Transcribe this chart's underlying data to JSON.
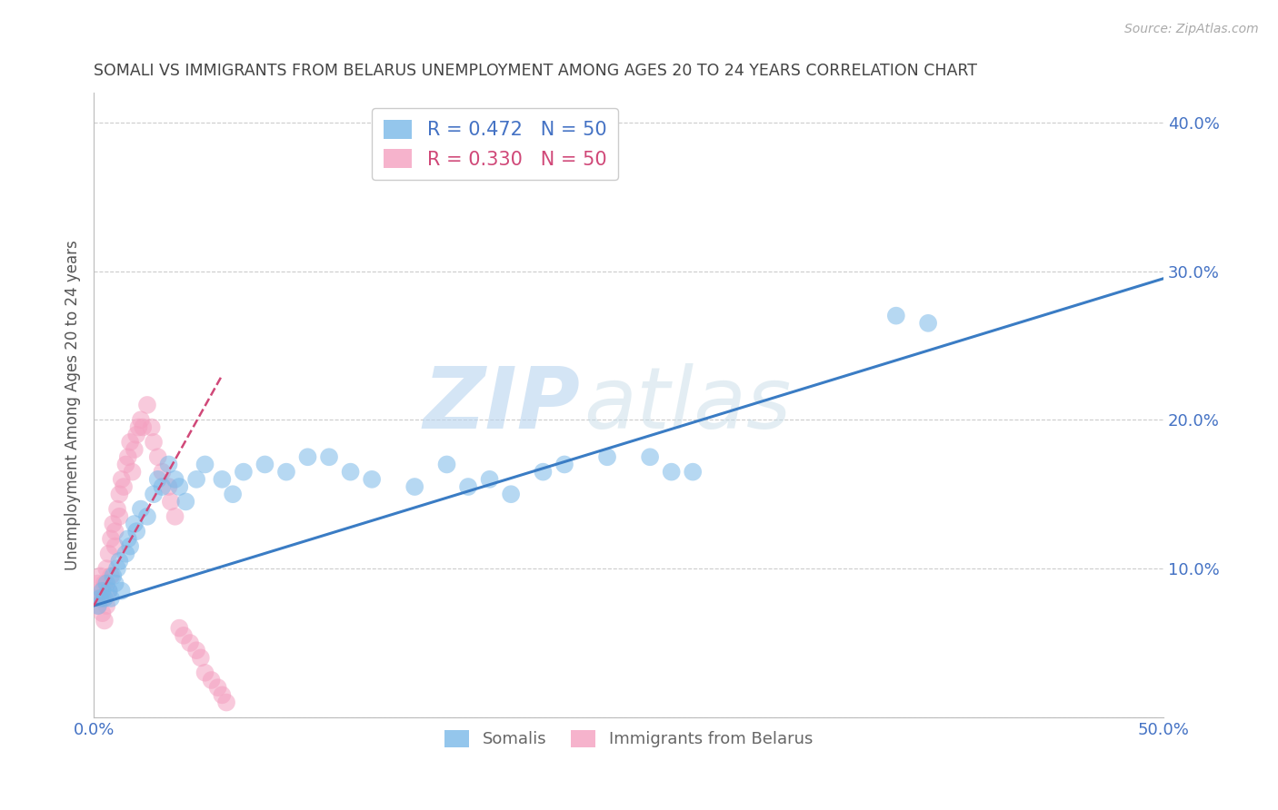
{
  "title": "SOMALI VS IMMIGRANTS FROM BELARUS UNEMPLOYMENT AMONG AGES 20 TO 24 YEARS CORRELATION CHART",
  "source": "Source: ZipAtlas.com",
  "ylabel": "Unemployment Among Ages 20 to 24 years",
  "xlim": [
    0.0,
    0.5
  ],
  "ylim": [
    0.0,
    0.42
  ],
  "ytick_positions": [
    0.0,
    0.1,
    0.2,
    0.3,
    0.4
  ],
  "ytick_labels": [
    "",
    "10.0%",
    "20.0%",
    "30.0%",
    "40.0%"
  ],
  "xtick_positions": [
    0.0,
    0.1,
    0.2,
    0.3,
    0.4,
    0.5
  ],
  "xtick_labels": [
    "0.0%",
    "",
    "",
    "",
    "",
    "50.0%"
  ],
  "watermark_zip": "ZIP",
  "watermark_atlas": "atlas",
  "legend_entries": [
    {
      "label_r": "R = 0.472",
      "label_n": "N = 50",
      "color": "#7ab8e8"
    },
    {
      "label_r": "R = 0.330",
      "label_n": "N = 50",
      "color": "#f4a0c0"
    }
  ],
  "legend_labels_bottom": [
    "Somalis",
    "Immigrants from Belarus"
  ],
  "somali_scatter_x": [
    0.002,
    0.003,
    0.004,
    0.005,
    0.006,
    0.007,
    0.008,
    0.009,
    0.01,
    0.011,
    0.012,
    0.013,
    0.015,
    0.016,
    0.017,
    0.019,
    0.02,
    0.022,
    0.025,
    0.028,
    0.03,
    0.032,
    0.035,
    0.038,
    0.04,
    0.043,
    0.048,
    0.052,
    0.06,
    0.065,
    0.07,
    0.08,
    0.09,
    0.1,
    0.11,
    0.12,
    0.13,
    0.15,
    0.165,
    0.175,
    0.185,
    0.195,
    0.21,
    0.22,
    0.24,
    0.26,
    0.27,
    0.28,
    0.375,
    0.39
  ],
  "somali_scatter_y": [
    0.075,
    0.08,
    0.085,
    0.08,
    0.09,
    0.085,
    0.08,
    0.095,
    0.09,
    0.1,
    0.105,
    0.085,
    0.11,
    0.12,
    0.115,
    0.13,
    0.125,
    0.14,
    0.135,
    0.15,
    0.16,
    0.155,
    0.17,
    0.16,
    0.155,
    0.145,
    0.16,
    0.17,
    0.16,
    0.15,
    0.165,
    0.17,
    0.165,
    0.175,
    0.175,
    0.165,
    0.16,
    0.155,
    0.17,
    0.155,
    0.16,
    0.15,
    0.165,
    0.17,
    0.175,
    0.175,
    0.165,
    0.165,
    0.27,
    0.265
  ],
  "belarus_scatter_x": [
    0.001,
    0.002,
    0.002,
    0.003,
    0.003,
    0.004,
    0.004,
    0.005,
    0.005,
    0.006,
    0.006,
    0.007,
    0.007,
    0.008,
    0.008,
    0.009,
    0.01,
    0.01,
    0.011,
    0.012,
    0.012,
    0.013,
    0.014,
    0.015,
    0.016,
    0.017,
    0.018,
    0.019,
    0.02,
    0.021,
    0.022,
    0.023,
    0.025,
    0.027,
    0.028,
    0.03,
    0.032,
    0.035,
    0.036,
    0.038,
    0.04,
    0.042,
    0.045,
    0.048,
    0.05,
    0.052,
    0.055,
    0.058,
    0.06,
    0.062
  ],
  "belarus_scatter_y": [
    0.08,
    0.075,
    0.09,
    0.085,
    0.095,
    0.07,
    0.08,
    0.065,
    0.09,
    0.075,
    0.1,
    0.085,
    0.11,
    0.095,
    0.12,
    0.13,
    0.115,
    0.125,
    0.14,
    0.135,
    0.15,
    0.16,
    0.155,
    0.17,
    0.175,
    0.185,
    0.165,
    0.18,
    0.19,
    0.195,
    0.2,
    0.195,
    0.21,
    0.195,
    0.185,
    0.175,
    0.165,
    0.155,
    0.145,
    0.135,
    0.06,
    0.055,
    0.05,
    0.045,
    0.04,
    0.03,
    0.025,
    0.02,
    0.015,
    0.01
  ],
  "somali_line_x": [
    0.0,
    0.5
  ],
  "somali_line_y": [
    0.075,
    0.295
  ],
  "belarus_line_x": [
    0.0,
    0.06
  ],
  "belarus_line_y": [
    0.075,
    0.23
  ],
  "scatter_color_somali": "#7ab8e8",
  "scatter_color_belarus": "#f4a0c0",
  "line_color_somali": "#3a7cc4",
  "line_color_belarus": "#d04878",
  "background_color": "#ffffff",
  "grid_color": "#cccccc",
  "title_color": "#444444",
  "axis_tick_color": "#4472c4",
  "legend_color_somali": "#4472c4",
  "legend_color_belarus": "#d04878"
}
